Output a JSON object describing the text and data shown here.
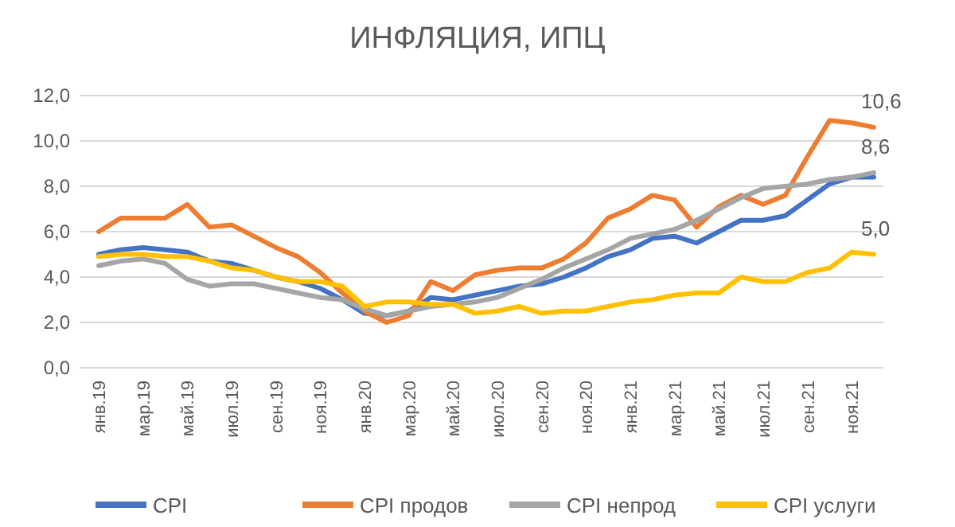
{
  "chart_data": {
    "type": "line",
    "title": "ИНФЛЯЦИЯ, ИПЦ",
    "categories": [
      "янв.19",
      null,
      "мар.19",
      null,
      "май.19",
      null,
      "июл.19",
      null,
      "сен.19",
      null,
      "ноя.19",
      null,
      "янв.20",
      null,
      "мар.20",
      null,
      "май.20",
      null,
      "июл.20",
      null,
      "сен.20",
      null,
      "ноя.20",
      null,
      "янв.21",
      null,
      "мар.21",
      null,
      "май.21",
      null,
      "июл.21",
      null,
      "сен.21",
      null,
      "ноя.21",
      null
    ],
    "series": [
      {
        "name": "CPI",
        "color": "#4472c4",
        "values": [
          5.0,
          5.2,
          5.3,
          5.2,
          5.1,
          4.7,
          4.6,
          4.3,
          4.0,
          3.8,
          3.5,
          3.0,
          2.4,
          2.3,
          2.5,
          3.1,
          3.0,
          3.2,
          3.4,
          3.6,
          3.7,
          4.0,
          4.4,
          4.9,
          5.2,
          5.7,
          5.8,
          5.5,
          6.0,
          6.5,
          6.5,
          6.7,
          7.4,
          8.1,
          8.4,
          8.4
        ]
      },
      {
        "name": "CPI продов",
        "color": "#ed7d31",
        "values": [
          6.0,
          6.6,
          6.6,
          6.6,
          7.2,
          6.2,
          6.3,
          5.8,
          5.3,
          4.9,
          4.2,
          3.3,
          2.5,
          2.0,
          2.3,
          3.8,
          3.4,
          4.1,
          4.3,
          4.4,
          4.4,
          4.8,
          5.5,
          6.6,
          7.0,
          7.6,
          7.4,
          6.2,
          7.1,
          7.6,
          7.2,
          7.6,
          9.3,
          10.9,
          10.8,
          10.6
        ],
        "value_labels": [
          null,
          null,
          null,
          null,
          null,
          null,
          null,
          null,
          null,
          null,
          null,
          null,
          null,
          null,
          null,
          null,
          null,
          null,
          null,
          null,
          null,
          null,
          null,
          null,
          null,
          null,
          null,
          null,
          null,
          null,
          null,
          null,
          null,
          null,
          null,
          "10,6"
        ]
      },
      {
        "name": "CPI непрод",
        "color": "#a5a5a5",
        "values": [
          4.5,
          4.7,
          4.8,
          4.6,
          3.9,
          3.6,
          3.7,
          3.7,
          3.5,
          3.3,
          3.1,
          3.0,
          2.6,
          2.3,
          2.5,
          2.7,
          2.8,
          2.9,
          3.1,
          3.5,
          3.9,
          4.4,
          4.8,
          5.2,
          5.7,
          5.9,
          6.1,
          6.5,
          7.0,
          7.5,
          7.9,
          8.0,
          8.1,
          8.3,
          8.4,
          8.6
        ],
        "value_labels": [
          null,
          null,
          null,
          null,
          null,
          null,
          null,
          null,
          null,
          null,
          null,
          null,
          null,
          null,
          null,
          null,
          null,
          null,
          null,
          null,
          null,
          null,
          null,
          null,
          null,
          null,
          null,
          null,
          null,
          null,
          null,
          null,
          null,
          null,
          null,
          "8,6"
        ]
      },
      {
        "name": "CPI услуги",
        "color": "#ffc000",
        "values": [
          4.9,
          5.0,
          5.0,
          4.9,
          4.9,
          4.7,
          4.4,
          4.3,
          4.0,
          3.8,
          3.8,
          3.6,
          2.7,
          2.9,
          2.9,
          2.8,
          2.8,
          2.4,
          2.5,
          2.7,
          2.4,
          2.5,
          2.5,
          2.7,
          2.9,
          3.0,
          3.2,
          3.3,
          3.3,
          4.0,
          3.8,
          3.8,
          4.2,
          4.4,
          5.1,
          5.0
        ],
        "value_labels": [
          null,
          null,
          null,
          null,
          null,
          null,
          null,
          null,
          null,
          null,
          null,
          null,
          null,
          null,
          null,
          null,
          null,
          null,
          null,
          null,
          null,
          null,
          null,
          null,
          null,
          null,
          null,
          null,
          null,
          null,
          null,
          null,
          null,
          null,
          null,
          "5,0"
        ]
      }
    ],
    "ylim": [
      0,
      12
    ],
    "yticks": [
      {
        "value": 0,
        "label": "0,0"
      },
      {
        "value": 2,
        "label": "2,0"
      },
      {
        "value": 4,
        "label": "4,0"
      },
      {
        "value": 6,
        "label": "6,0"
      },
      {
        "value": 8,
        "label": "8,0"
      },
      {
        "value": 10,
        "label": "10,0"
      },
      {
        "value": 12,
        "label": "12,0"
      }
    ],
    "grid": "y",
    "legend": "bottom",
    "line_style": "solid",
    "marker": "none"
  }
}
